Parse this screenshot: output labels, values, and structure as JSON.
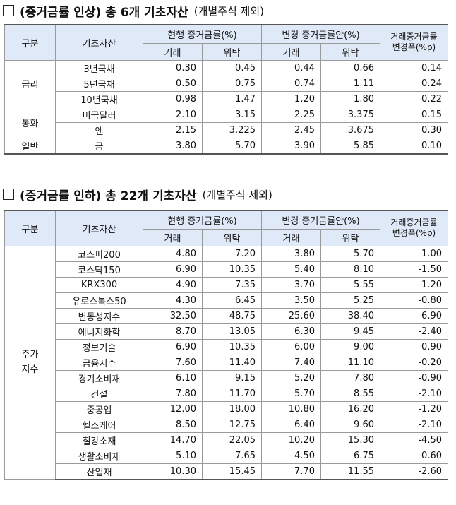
{
  "section1": {
    "title": "(증거금률 인상) 총 6개 기초자산",
    "note": "(개별주식 제외)",
    "headers": {
      "category": "구분",
      "asset": "기초자산",
      "current": "현행 증거금률(%)",
      "proposed": "변경 증거금률안(%)",
      "change_line1": "거래증거금률",
      "change_line2": "변경폭(%p)",
      "trade": "거래",
      "trust": "위탁"
    },
    "groups": [
      {
        "category": "금리",
        "rows": [
          {
            "asset": "3년국채",
            "cur_trade": "0.30",
            "cur_trust": "0.45",
            "new_trade": "0.44",
            "new_trust": "0.66",
            "change": "0.14"
          },
          {
            "asset": "5년국채",
            "cur_trade": "0.50",
            "cur_trust": "0.75",
            "new_trade": "0.74",
            "new_trust": "1.11",
            "change": "0.24"
          },
          {
            "asset": "10년국채",
            "cur_trade": "0.98",
            "cur_trust": "1.47",
            "new_trade": "1.20",
            "new_trust": "1.80",
            "change": "0.22"
          }
        ]
      },
      {
        "category": "통화",
        "rows": [
          {
            "asset": "미국달러",
            "cur_trade": "2.10",
            "cur_trust": "3.15",
            "new_trade": "2.25",
            "new_trust": "3.375",
            "change": "0.15"
          },
          {
            "asset": "엔",
            "cur_trade": "2.15",
            "cur_trust": "3.225",
            "new_trade": "2.45",
            "new_trust": "3.675",
            "change": "0.30"
          }
        ]
      },
      {
        "category": "일반",
        "rows": [
          {
            "asset": "금",
            "cur_trade": "3.80",
            "cur_trust": "5.70",
            "new_trade": "3.90",
            "new_trust": "5.85",
            "change": "0.10"
          }
        ]
      }
    ]
  },
  "section2": {
    "title": "(증거금률 인하) 총 22개 기초자산",
    "note": "(개별주식 제외)",
    "headers": {
      "category": "구분",
      "asset": "기초자산",
      "current": "현행 증거금률(%)",
      "proposed": "변경 증거금률안(%)",
      "change_line1": "거래증거금률",
      "change_line2": "변경폭(%p)",
      "trade": "거래",
      "trust": "위탁"
    },
    "groups": [
      {
        "category_line1": "주가",
        "category_line2": "지수",
        "rows": [
          {
            "asset": "코스피200",
            "cur_trade": "4.80",
            "cur_trust": "7.20",
            "new_trade": "3.80",
            "new_trust": "5.70",
            "change": "-1.00"
          },
          {
            "asset": "코스닥150",
            "cur_trade": "6.90",
            "cur_trust": "10.35",
            "new_trade": "5.40",
            "new_trust": "8.10",
            "change": "-1.50"
          },
          {
            "asset": "KRX300",
            "cur_trade": "4.90",
            "cur_trust": "7.35",
            "new_trade": "3.70",
            "new_trust": "5.55",
            "change": "-1.20"
          },
          {
            "asset": "유로스톡스50",
            "cur_trade": "4.30",
            "cur_trust": "6.45",
            "new_trade": "3.50",
            "new_trust": "5.25",
            "change": "-0.80"
          },
          {
            "asset": "변동성지수",
            "cur_trade": "32.50",
            "cur_trust": "48.75",
            "new_trade": "25.60",
            "new_trust": "38.40",
            "change": "-6.90"
          },
          {
            "asset": "에너지화학",
            "cur_trade": "8.70",
            "cur_trust": "13.05",
            "new_trade": "6.30",
            "new_trust": "9.45",
            "change": "-2.40"
          },
          {
            "asset": "정보기술",
            "cur_trade": "6.90",
            "cur_trust": "10.35",
            "new_trade": "6.00",
            "new_trust": "9.00",
            "change": "-0.90"
          },
          {
            "asset": "금융지수",
            "cur_trade": "7.60",
            "cur_trust": "11.40",
            "new_trade": "7.40",
            "new_trust": "11.10",
            "change": "-0.20"
          },
          {
            "asset": "경기소비재",
            "cur_trade": "6.10",
            "cur_trust": "9.15",
            "new_trade": "5.20",
            "new_trust": "7.80",
            "change": "-0.90"
          },
          {
            "asset": "건설",
            "cur_trade": "7.80",
            "cur_trust": "11.70",
            "new_trade": "5.70",
            "new_trust": "8.55",
            "change": "-2.10"
          },
          {
            "asset": "중공업",
            "cur_trade": "12.00",
            "cur_trust": "18.00",
            "new_trade": "10.80",
            "new_trust": "16.20",
            "change": "-1.20"
          },
          {
            "asset": "헬스케어",
            "cur_trade": "8.50",
            "cur_trust": "12.75",
            "new_trade": "6.40",
            "new_trust": "9.60",
            "change": "-2.10"
          },
          {
            "asset": "철강소재",
            "cur_trade": "14.70",
            "cur_trust": "22.05",
            "new_trade": "10.20",
            "new_trust": "15.30",
            "change": "-4.50"
          },
          {
            "asset": "생활소비재",
            "cur_trade": "5.10",
            "cur_trust": "7.65",
            "new_trade": "4.50",
            "new_trust": "6.75",
            "change": "-0.60"
          },
          {
            "asset": "산업재",
            "cur_trade": "10.30",
            "cur_trust": "15.45",
            "new_trade": "7.70",
            "new_trust": "11.55",
            "change": "-2.60"
          }
        ]
      }
    ]
  }
}
